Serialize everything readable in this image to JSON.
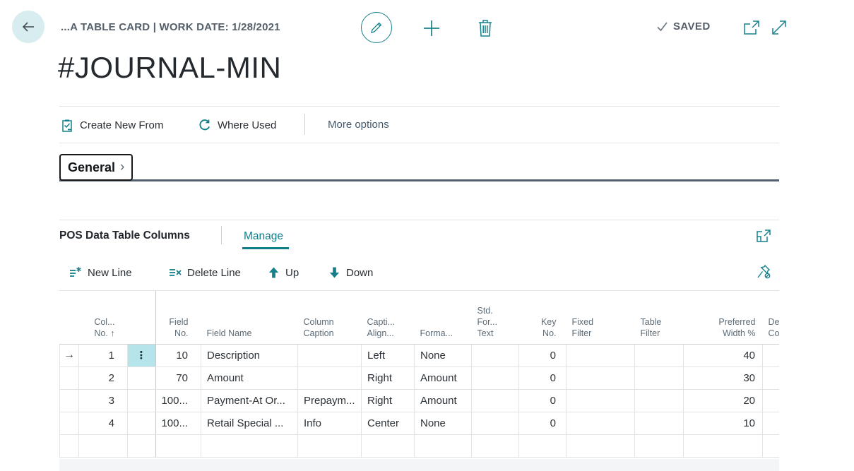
{
  "colors": {
    "accent": "#15808b",
    "caption_text": "#535f6a",
    "title_text": "#23292e",
    "body_text": "#2c3237",
    "section_underline": "#525f6e",
    "selected_cell_bg": "#b5e5ea",
    "back_circle_bg": "#d8edef",
    "footer_strip": "#f3f5f7"
  },
  "top_bar": {
    "caption": "...A TABLE CARD | WORK DATE: 1/28/2021",
    "status_label": "SAVED",
    "icons": {
      "back": "back-arrow-icon",
      "edit": "pencil-icon",
      "new": "plus-icon",
      "delete": "trash-icon",
      "status": "checkmark-icon",
      "popout": "open-new-window-icon",
      "resize": "expand-diagonal-icon"
    }
  },
  "page": {
    "title": "#JOURNAL-MIN"
  },
  "action_bar": {
    "items": [
      {
        "label": "Create New From",
        "icon": "clipboard-check-icon"
      },
      {
        "label": "Where Used",
        "icon": "where-used-cycle-icon"
      }
    ],
    "more_label": "More options"
  },
  "fasttab": {
    "general_label": "General",
    "chevron": "›"
  },
  "part": {
    "title": "POS Data Table Columns",
    "manage_label": "Manage",
    "toolbar": {
      "new_line": "New Line",
      "delete_line": "Delete Line",
      "up": "Up",
      "down": "Down"
    },
    "icons": {
      "focus": "focus-mode-icon",
      "unpin": "unpin-icon"
    }
  },
  "table": {
    "columns": [
      {
        "id": "row_indicator",
        "label": "",
        "align": "center"
      },
      {
        "id": "col_no",
        "label": "Col...\nNo. ↑",
        "align": "right"
      },
      {
        "id": "row_menu",
        "label": "",
        "align": "center"
      },
      {
        "id": "field_no",
        "label": "Field\nNo.",
        "align": "right"
      },
      {
        "id": "field_name",
        "label": "Field Name",
        "align": "left"
      },
      {
        "id": "column_caption",
        "label": "Column\nCaption",
        "align": "left"
      },
      {
        "id": "caption_align",
        "label": "Capti...\nAlign...",
        "align": "left"
      },
      {
        "id": "format",
        "label": "Forma...",
        "align": "left"
      },
      {
        "id": "std_for_text",
        "label": "Std.\nFor...\nText",
        "align": "left"
      },
      {
        "id": "key_no",
        "label": "Key\nNo.",
        "align": "right"
      },
      {
        "id": "fixed_filter",
        "label": "Fixed\nFilter",
        "align": "left"
      },
      {
        "id": "table_filter",
        "label": "Table\nFilter",
        "align": "left"
      },
      {
        "id": "preferred_width",
        "label": "Preferred\nWidth %",
        "align": "right"
      },
      {
        "id": "de_co",
        "label": "De\nCo",
        "align": "left"
      }
    ],
    "rows": [
      {
        "current": true,
        "cells": {
          "row_indicator": "→",
          "col_no": "1",
          "row_menu": "⋮",
          "field_no": "10",
          "field_name": "Description",
          "column_caption": "",
          "caption_align": "Left",
          "format": "None",
          "std_for_text": "",
          "key_no": "0",
          "fixed_filter": "",
          "table_filter": "",
          "preferred_width": "40",
          "de_co": ""
        }
      },
      {
        "cells": {
          "row_indicator": "",
          "col_no": "2",
          "row_menu": "",
          "field_no": "70",
          "field_name": "Amount",
          "column_caption": "",
          "caption_align": "Right",
          "format": "Amount",
          "std_for_text": "",
          "key_no": "0",
          "fixed_filter": "",
          "table_filter": "",
          "preferred_width": "30",
          "de_co": ""
        }
      },
      {
        "cells": {
          "row_indicator": "",
          "col_no": "3",
          "row_menu": "",
          "field_no": "100...",
          "field_name": "Payment-At Or...",
          "column_caption": "Prepaym...",
          "caption_align": "Right",
          "format": "Amount",
          "std_for_text": "",
          "key_no": "0",
          "fixed_filter": "",
          "table_filter": "",
          "preferred_width": "20",
          "de_co": ""
        }
      },
      {
        "cells": {
          "row_indicator": "",
          "col_no": "4",
          "row_menu": "",
          "field_no": "100...",
          "field_name": "Retail Special ...",
          "column_caption": "Info",
          "caption_align": "Center",
          "format": "None",
          "std_for_text": "",
          "key_no": "0",
          "fixed_filter": "",
          "table_filter": "",
          "preferred_width": "10",
          "de_co": ""
        }
      },
      {
        "cells": {
          "row_indicator": "",
          "col_no": "",
          "row_menu": "",
          "field_no": "",
          "field_name": "",
          "column_caption": "",
          "caption_align": "",
          "format": "",
          "std_for_text": "",
          "key_no": "",
          "fixed_filter": "",
          "table_filter": "",
          "preferred_width": "",
          "de_co": ""
        }
      }
    ]
  }
}
